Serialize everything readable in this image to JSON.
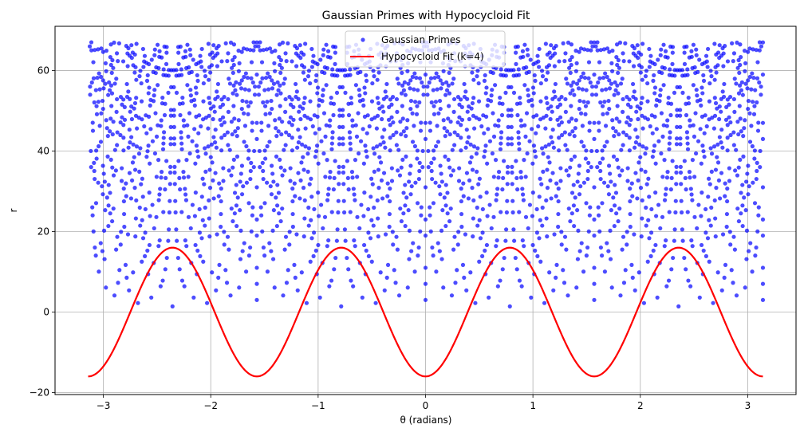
{
  "chart_data": {
    "type": "scatter",
    "title": "Gaussian Primes with Hypocycloid Fit",
    "xlabel": "θ (radians)",
    "ylabel": "r",
    "xlim": [
      -3.45,
      3.45
    ],
    "ylim": [
      -20.5,
      71
    ],
    "x_ticks": [
      -3,
      -2,
      -1,
      0,
      1,
      2,
      3
    ],
    "x_tick_labels": [
      "−3",
      "−2",
      "−1",
      "0",
      "1",
      "2",
      "3"
    ],
    "y_ticks": [
      -20,
      0,
      20,
      40,
      60
    ],
    "y_tick_labels": [
      "−20",
      "0",
      "20",
      "40",
      "60"
    ],
    "grid": true,
    "legend_position": "upper-center",
    "series": [
      {
        "name": "Gaussian Primes",
        "kind": "scatter",
        "color": "#0000ff",
        "opacity": 0.7,
        "max_norm": 4500,
        "description_rule": "points at angle atan2(b,a) and modulus sqrt(a^2+b^2) for Gaussian primes a+bi"
      },
      {
        "name": "Hypocycloid Fit (k=4)",
        "kind": "line",
        "color": "#ff0000",
        "amplitude": 16,
        "k": 4,
        "x_range": [
          -3.1416,
          3.1416
        ]
      }
    ]
  },
  "colors": {
    "grid": "#b0b0b0",
    "axes": "#000000",
    "scatter": "#0000ff",
    "line": "#ff0000"
  }
}
